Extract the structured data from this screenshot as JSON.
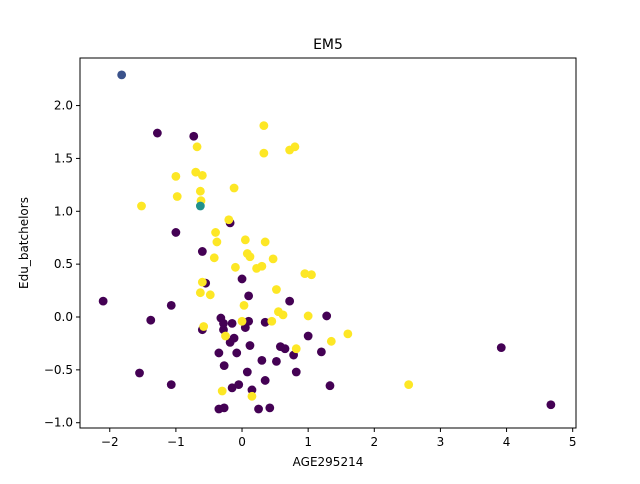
{
  "chart_data": {
    "type": "scatter",
    "title": "EM5",
    "xlabel": "AGE295214",
    "ylabel": "Edu_batchelors",
    "xlim": [
      -2.45,
      5.05
    ],
    "ylim": [
      -1.05,
      2.45
    ],
    "xticks": [
      -2,
      -1,
      0,
      1,
      2,
      3,
      4,
      5
    ],
    "yticks": [
      -1.0,
      -0.5,
      0.0,
      0.5,
      1.0,
      1.5,
      2.0
    ],
    "xtick_labels": [
      "−2",
      "−1",
      "0",
      "1",
      "2",
      "3",
      "4",
      "5"
    ],
    "ytick_labels": [
      "−1.0",
      "−0.5",
      "0.0",
      "0.5",
      "1.0",
      "1.5",
      "2.0"
    ],
    "grid": false,
    "legend": "none",
    "series": [
      {
        "color": "#440154",
        "points": [
          [
            -2.1,
            0.15
          ],
          [
            -1.55,
            -0.53
          ],
          [
            -1.38,
            -0.03
          ],
          [
            -1.28,
            1.74
          ],
          [
            -1.07,
            0.11
          ],
          [
            -1.07,
            -0.64
          ],
          [
            -1.0,
            0.8
          ],
          [
            -0.73,
            1.71
          ],
          [
            -0.6,
            0.62
          ],
          [
            -0.6,
            -0.12
          ],
          [
            -0.55,
            0.32
          ],
          [
            -0.35,
            -0.34
          ],
          [
            -0.35,
            -0.87
          ],
          [
            -0.32,
            -0.01
          ],
          [
            -0.28,
            -0.06
          ],
          [
            -0.28,
            -0.12
          ],
          [
            -0.27,
            -0.46
          ],
          [
            -0.27,
            -0.86
          ],
          [
            -0.18,
            0.89
          ],
          [
            -0.18,
            -0.24
          ],
          [
            -0.15,
            -0.06
          ],
          [
            -0.15,
            -0.67
          ],
          [
            -0.12,
            -0.2
          ],
          [
            -0.08,
            -0.34
          ],
          [
            -0.05,
            -0.64
          ],
          [
            0.0,
            0.36
          ],
          [
            0.05,
            -0.1
          ],
          [
            0.08,
            -0.52
          ],
          [
            0.1,
            0.2
          ],
          [
            0.1,
            -0.04
          ],
          [
            0.12,
            -0.27
          ],
          [
            0.15,
            -0.69
          ],
          [
            0.25,
            -0.87
          ],
          [
            0.3,
            -0.41
          ],
          [
            0.35,
            -0.05
          ],
          [
            0.35,
            -0.6
          ],
          [
            0.42,
            -0.86
          ],
          [
            0.52,
            -0.42
          ],
          [
            0.58,
            -0.28
          ],
          [
            0.65,
            -0.3
          ],
          [
            0.72,
            0.15
          ],
          [
            0.78,
            -0.36
          ],
          [
            0.82,
            -0.52
          ],
          [
            1.0,
            -0.18
          ],
          [
            1.2,
            -0.33
          ],
          [
            1.28,
            0.01
          ],
          [
            1.33,
            -0.65
          ],
          [
            3.92,
            -0.29
          ],
          [
            4.67,
            -0.83
          ]
        ]
      },
      {
        "color": "#fde725",
        "points": [
          [
            -1.52,
            1.05
          ],
          [
            -1.0,
            1.33
          ],
          [
            -0.98,
            1.14
          ],
          [
            -0.7,
            1.37
          ],
          [
            -0.68,
            1.61
          ],
          [
            -0.63,
            1.19
          ],
          [
            -0.6,
            1.34
          ],
          [
            -0.62,
            1.1
          ],
          [
            -0.63,
            0.23
          ],
          [
            -0.6,
            0.33
          ],
          [
            -0.58,
            -0.09
          ],
          [
            -0.48,
            0.21
          ],
          [
            -0.42,
            0.56
          ],
          [
            -0.4,
            0.8
          ],
          [
            -0.38,
            0.71
          ],
          [
            -0.3,
            -0.7
          ],
          [
            -0.25,
            -0.18
          ],
          [
            -0.2,
            0.92
          ],
          [
            -0.12,
            1.22
          ],
          [
            -0.1,
            0.47
          ],
          [
            0.0,
            -0.04
          ],
          [
            0.03,
            0.11
          ],
          [
            0.05,
            0.73
          ],
          [
            0.08,
            0.6
          ],
          [
            0.12,
            0.57
          ],
          [
            0.15,
            -0.75
          ],
          [
            0.22,
            0.46
          ],
          [
            0.3,
            0.48
          ],
          [
            0.33,
            1.81
          ],
          [
            0.33,
            1.55
          ],
          [
            0.35,
            0.71
          ],
          [
            0.45,
            -0.04
          ],
          [
            0.47,
            0.55
          ],
          [
            0.52,
            0.26
          ],
          [
            0.55,
            0.05
          ],
          [
            0.62,
            0.02
          ],
          [
            0.72,
            1.58
          ],
          [
            0.8,
            1.61
          ],
          [
            0.82,
            -0.3
          ],
          [
            0.95,
            0.41
          ],
          [
            1.0,
            0.01
          ],
          [
            1.05,
            0.4
          ],
          [
            1.35,
            -0.23
          ],
          [
            1.6,
            -0.16
          ],
          [
            2.52,
            -0.64
          ]
        ]
      },
      {
        "color": "#21918c",
        "points": [
          [
            -0.63,
            1.05
          ]
        ]
      },
      {
        "color": "#3b528b",
        "points": [
          [
            -1.82,
            2.29
          ]
        ]
      }
    ]
  }
}
